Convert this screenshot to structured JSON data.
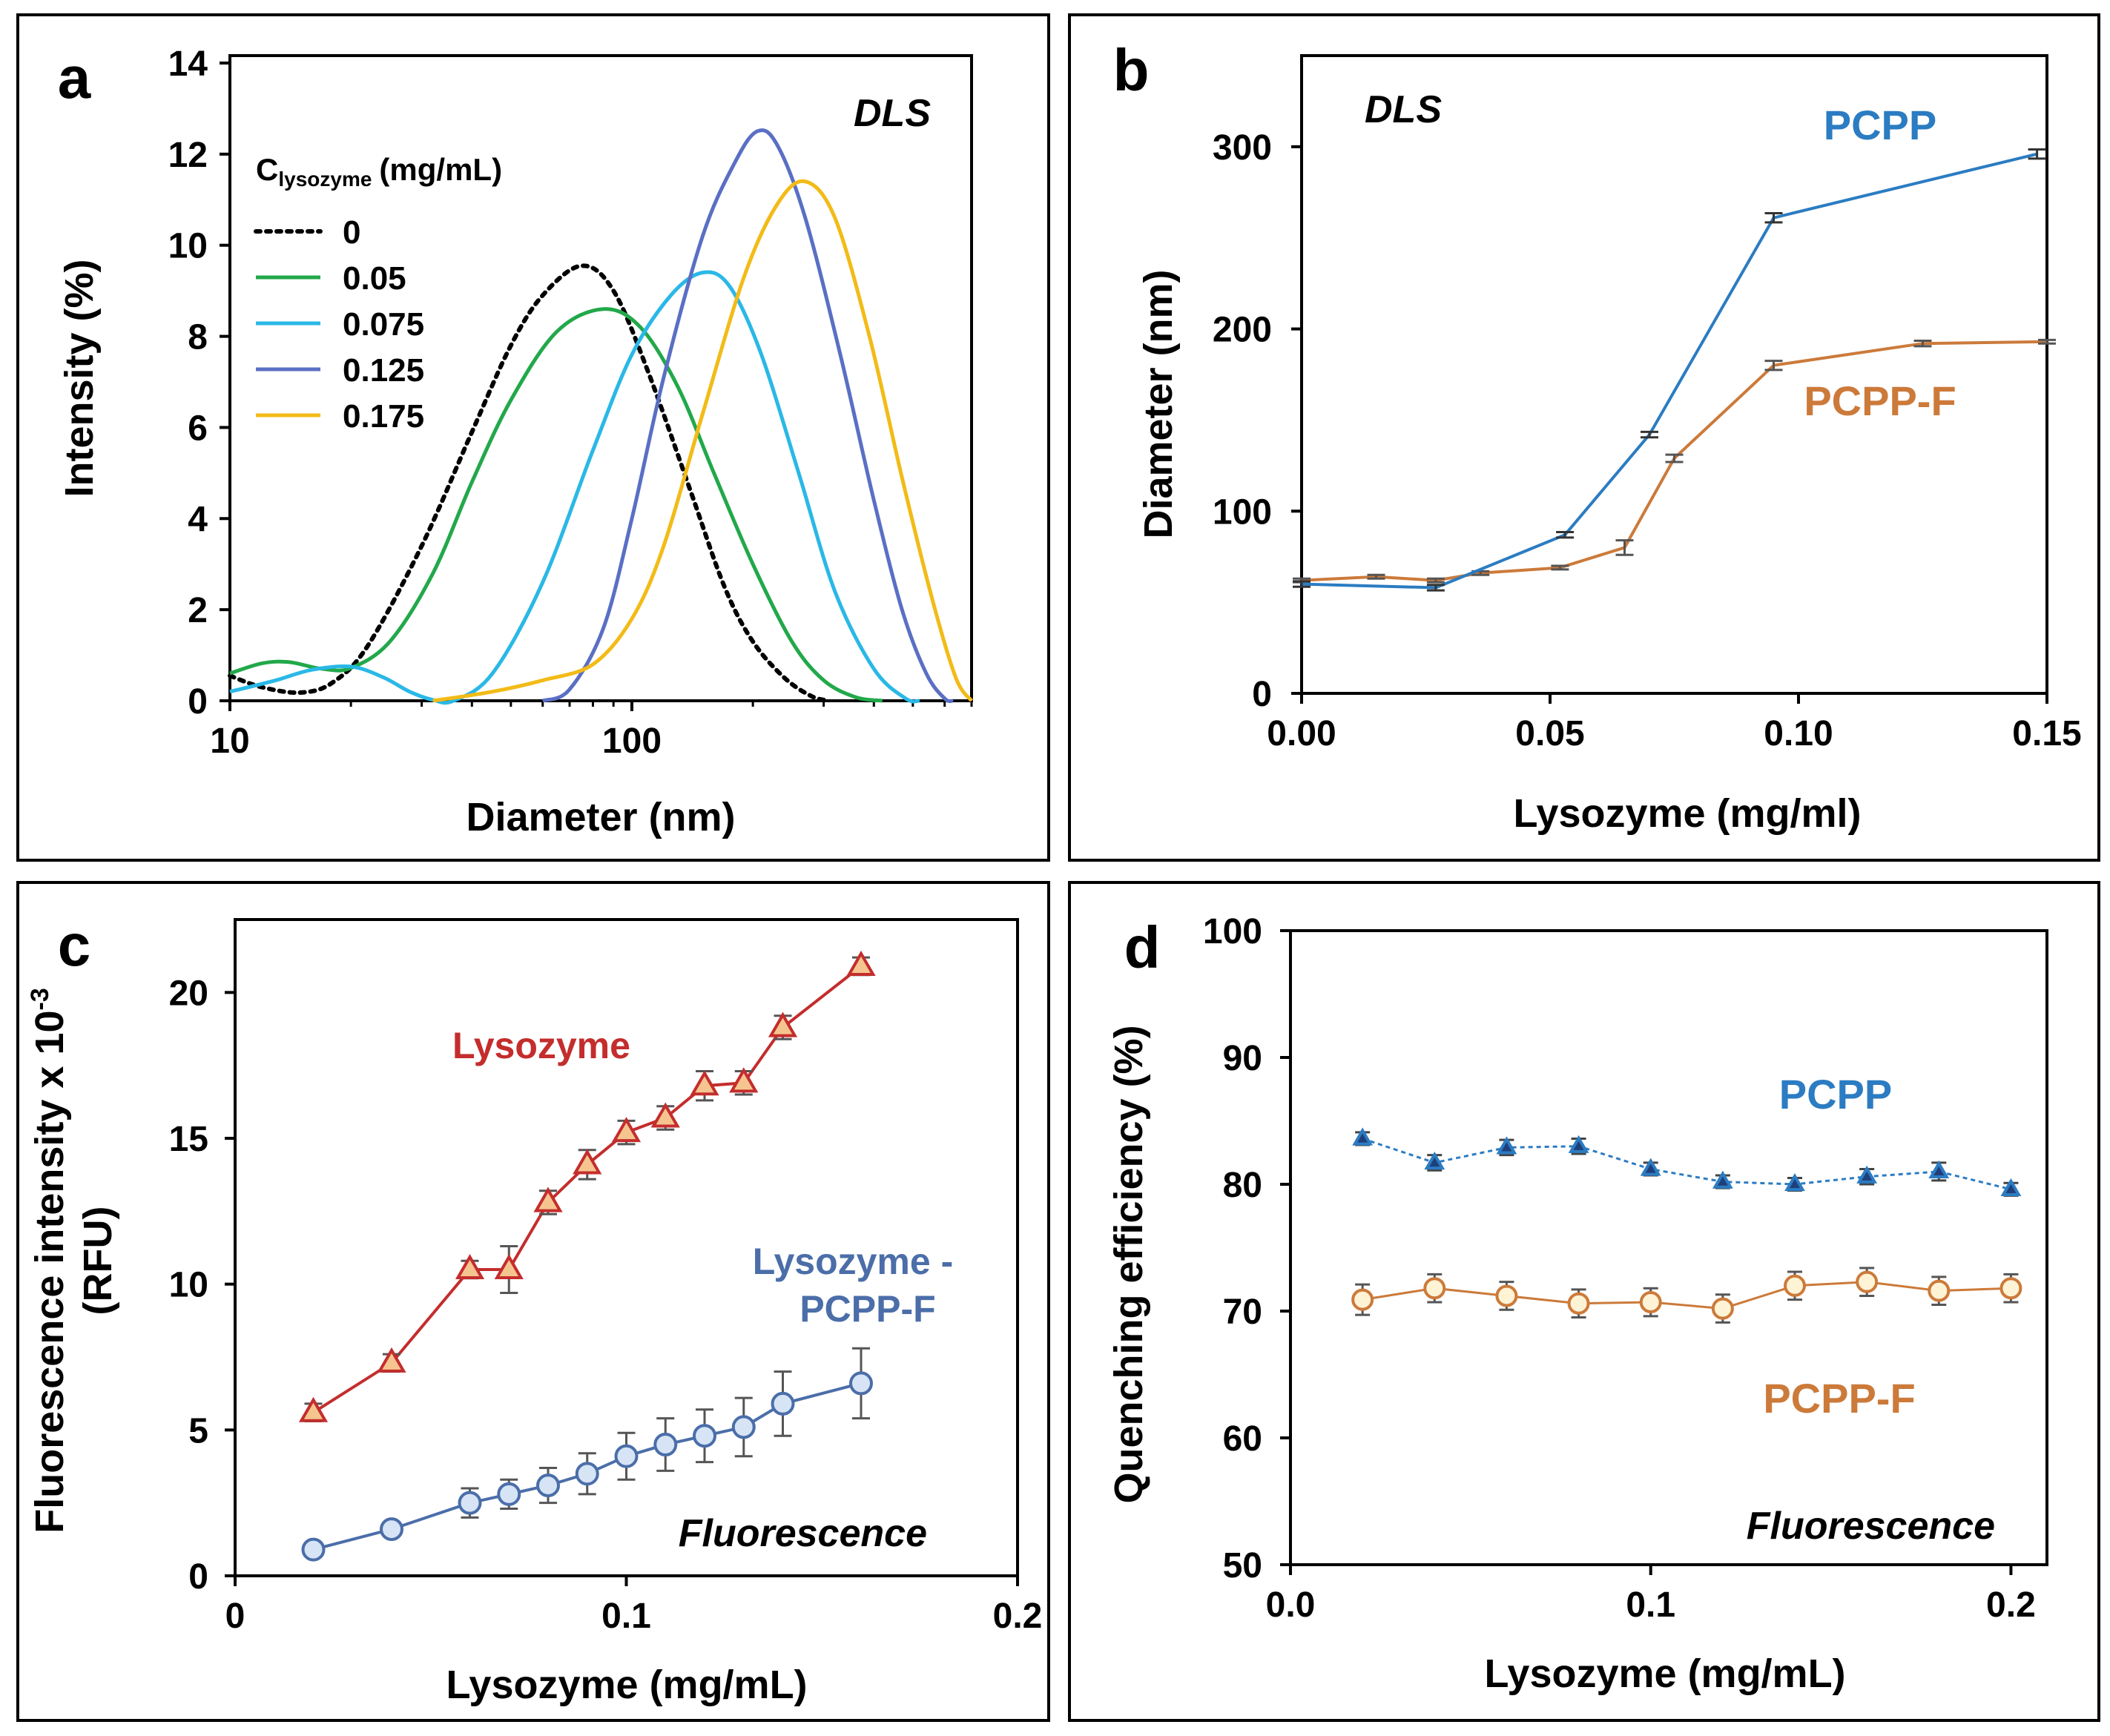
{
  "colors": {
    "green": "#22a84a",
    "lightblue": "#2ab8e6",
    "darkblue": "#5a6fc4",
    "gold": "#f2bb17",
    "pcpp_blue": "#2b7cc2",
    "pcpp_orange": "#cc7a3a",
    "lys_red": "#c42d2d",
    "lysF_blue": "#4b6ea9"
  },
  "chart_data": [
    {
      "id": "a",
      "panel_label": "a",
      "type": "line",
      "annotation": "DLS",
      "xlabel": "Diameter (nm)",
      "ylabel": "Intensity (%)",
      "xscale": "log",
      "xlim": [
        10,
        700
      ],
      "ylim": [
        0,
        14
      ],
      "x_tick_labels": [
        "10",
        "100"
      ],
      "y_ticks": [
        0,
        2,
        4,
        6,
        8,
        10,
        12,
        14
      ],
      "legend_title_main": "C",
      "legend_title_sub": "lysozyme",
      "legend_title_unit": "(mg/mL)",
      "series": [
        {
          "name": "0",
          "style": "dotted",
          "color": "#000000",
          "points": [
            [
              10,
              0.55
            ],
            [
              12,
              0.3
            ],
            [
              15,
              0.18
            ],
            [
              18,
              0.4
            ],
            [
              22,
              1.2
            ],
            [
              30,
              3.4
            ],
            [
              40,
              5.9
            ],
            [
              50,
              7.8
            ],
            [
              60,
              8.9
            ],
            [
              75,
              9.55
            ],
            [
              90,
              9.0
            ],
            [
              110,
              7.2
            ],
            [
              140,
              4.6
            ],
            [
              170,
              2.5
            ],
            [
              200,
              1.3
            ],
            [
              240,
              0.5
            ],
            [
              280,
              0.1
            ],
            [
              310,
              0
            ]
          ]
        },
        {
          "name": "0.05",
          "style": "solid",
          "color": "#22a84a",
          "points": [
            [
              10,
              0.6
            ],
            [
              12,
              0.82
            ],
            [
              14,
              0.85
            ],
            [
              17,
              0.7
            ],
            [
              20,
              0.72
            ],
            [
              25,
              1.3
            ],
            [
              32,
              2.8
            ],
            [
              40,
              4.8
            ],
            [
              50,
              6.6
            ],
            [
              65,
              8.1
            ],
            [
              85,
              8.6
            ],
            [
              105,
              8.2
            ],
            [
              130,
              6.9
            ],
            [
              160,
              5.0
            ],
            [
              200,
              3.0
            ],
            [
              250,
              1.3
            ],
            [
              300,
              0.45
            ],
            [
              360,
              0.08
            ],
            [
              420,
              0
            ]
          ]
        },
        {
          "name": "0.075",
          "style": "solid",
          "color": "#2ab8e6",
          "points": [
            [
              10,
              0.2
            ],
            [
              13,
              0.45
            ],
            [
              16,
              0.68
            ],
            [
              20,
              0.75
            ],
            [
              24,
              0.52
            ],
            [
              28,
              0.2
            ],
            [
              32,
              0.02
            ],
            [
              36,
              0
            ],
            [
              45,
              0.6
            ],
            [
              60,
              2.6
            ],
            [
              80,
              5.5
            ],
            [
              100,
              7.6
            ],
            [
              125,
              8.9
            ],
            [
              150,
              9.4
            ],
            [
              175,
              9.1
            ],
            [
              210,
              7.6
            ],
            [
              260,
              5.0
            ],
            [
              320,
              2.4
            ],
            [
              400,
              0.7
            ],
            [
              480,
              0.05
            ],
            [
              520,
              0
            ]
          ]
        },
        {
          "name": "0.125",
          "style": "solid",
          "color": "#5a6fc4",
          "points": [
            [
              60,
              0
            ],
            [
              70,
              0.25
            ],
            [
              85,
              1.6
            ],
            [
              100,
              4.0
            ],
            [
              120,
              7.1
            ],
            [
              150,
              10.2
            ],
            [
              180,
              11.8
            ],
            [
              205,
              12.5
            ],
            [
              230,
              12.2
            ],
            [
              270,
              10.6
            ],
            [
              330,
              7.6
            ],
            [
              400,
              4.4
            ],
            [
              470,
              2.0
            ],
            [
              540,
              0.6
            ],
            [
              600,
              0.05
            ],
            [
              630,
              0
            ]
          ]
        },
        {
          "name": "0.175",
          "style": "solid",
          "color": "#f2bb17",
          "points": [
            [
              32,
              0
            ],
            [
              45,
              0.2
            ],
            [
              60,
              0.45
            ],
            [
              80,
              0.8
            ],
            [
              100,
              1.8
            ],
            [
              120,
              3.4
            ],
            [
              150,
              6.3
            ],
            [
              190,
              9.3
            ],
            [
              230,
              10.9
            ],
            [
              270,
              11.4
            ],
            [
              320,
              10.6
            ],
            [
              390,
              8.0
            ],
            [
              470,
              4.9
            ],
            [
              560,
              2.2
            ],
            [
              640,
              0.5
            ],
            [
              700,
              0
            ]
          ]
        }
      ]
    },
    {
      "id": "b",
      "panel_label": "b",
      "type": "line",
      "annotation": "DLS",
      "xlabel": "Lysozyme  (mg/ml)",
      "ylabel": "Diameter (nm)",
      "xlim": [
        0,
        0.15
      ],
      "ylim": [
        0,
        350
      ],
      "x_tick_labels": [
        "0.00",
        "0.05",
        "0.10",
        "0.15"
      ],
      "y_ticks": [
        0,
        100,
        200,
        300
      ],
      "series": [
        {
          "name": "PCPP",
          "color": "#2b7cc2",
          "x": [
            0,
            0.027,
            0.053,
            0.07,
            0.095,
            0.148
          ],
          "y": [
            60,
            58,
            87,
            142,
            261,
            296
          ],
          "err": [
            1.5,
            1.5,
            1.5,
            1.5,
            2.5,
            2.5
          ]
        },
        {
          "name": "PCPP-F",
          "color": "#cc7a3a",
          "x": [
            0,
            0.015,
            0.027,
            0.036,
            0.052,
            0.065,
            0.075,
            0.095,
            0.125,
            0.15
          ],
          "y": [
            62,
            64,
            62,
            66,
            69,
            80,
            129,
            180,
            192,
            193
          ],
          "err": [
            1,
            1,
            1,
            1,
            1,
            4,
            2,
            2.5,
            1.5,
            1
          ]
        }
      ]
    },
    {
      "id": "c",
      "panel_label": "c",
      "type": "line",
      "annotation": "Fluorescence",
      "xlabel": "Lysozyme (mg/mL)",
      "ylabel_line1": "Fluorescence intensity x 10",
      "ylabel_exp": "-3",
      "ylabel_line2": "(RFU)",
      "xlim": [
        0,
        0.2
      ],
      "ylim": [
        0,
        22.5
      ],
      "x_tick_labels": [
        "0",
        "0.1",
        "0.2"
      ],
      "y_ticks": [
        0,
        5,
        10,
        15,
        20
      ],
      "series": [
        {
          "name": "Lysozyme",
          "marker": "triangle",
          "color": "#c42d2d",
          "x": [
            0.02,
            0.04,
            0.06,
            0.07,
            0.08,
            0.09,
            0.1,
            0.11,
            0.12,
            0.13,
            0.14,
            0.16
          ],
          "y": [
            5.6,
            7.3,
            10.5,
            10.5,
            12.8,
            14.1,
            15.2,
            15.7,
            16.8,
            16.9,
            18.8,
            20.9
          ],
          "err": [
            0.3,
            0.3,
            0.3,
            0.8,
            0.4,
            0.5,
            0.4,
            0.4,
            0.5,
            0.4,
            0.4,
            0.3
          ]
        },
        {
          "name_line1": "Lysozyme -",
          "name_line2": "PCPP-F",
          "marker": "circle",
          "color": "#4b6ea9",
          "x": [
            0.02,
            0.04,
            0.06,
            0.07,
            0.08,
            0.09,
            0.1,
            0.11,
            0.12,
            0.13,
            0.14,
            0.16
          ],
          "y": [
            0.9,
            1.6,
            2.5,
            2.8,
            3.1,
            3.5,
            4.1,
            4.5,
            4.8,
            5.1,
            5.9,
            6.6
          ],
          "err": [
            0.2,
            0.2,
            0.5,
            0.5,
            0.6,
            0.7,
            0.8,
            0.9,
            0.9,
            1.0,
            1.1,
            1.2
          ]
        }
      ]
    },
    {
      "id": "d",
      "panel_label": "d",
      "type": "line",
      "annotation": "Fluorescence",
      "xlabel": "Lysozyme (mg/mL)",
      "ylabel": "Quenching efficiency (%)",
      "xlim": [
        0,
        0.21
      ],
      "ylim": [
        50,
        100
      ],
      "x_tick_labels": [
        "0.0",
        "0.1",
        "0.2"
      ],
      "y_ticks": [
        50,
        60,
        70,
        80,
        90,
        100
      ],
      "series": [
        {
          "name": "PCPP",
          "marker": "triangle",
          "color": "#2b7cc2",
          "x": [
            0.02,
            0.04,
            0.06,
            0.08,
            0.1,
            0.12,
            0.14,
            0.16,
            0.18,
            0.2
          ],
          "y": [
            83.6,
            81.7,
            82.9,
            83.0,
            81.2,
            80.2,
            80.0,
            80.6,
            81.0,
            79.6
          ],
          "err": [
            0.5,
            0.6,
            0.6,
            0.6,
            0.5,
            0.5,
            0.5,
            0.6,
            0.7,
            0.5
          ]
        },
        {
          "name": "PCPP-F",
          "marker": "circle",
          "color": "#cc7a3a",
          "x": [
            0.02,
            0.04,
            0.06,
            0.08,
            0.1,
            0.12,
            0.14,
            0.16,
            0.18,
            0.2
          ],
          "y": [
            70.9,
            71.8,
            71.2,
            70.6,
            70.7,
            70.2,
            72.0,
            72.3,
            71.6,
            71.8
          ],
          "err": [
            1.2,
            1.1,
            1.1,
            1.1,
            1.1,
            1.1,
            1.1,
            1.1,
            1.1,
            1.1
          ]
        }
      ]
    }
  ]
}
